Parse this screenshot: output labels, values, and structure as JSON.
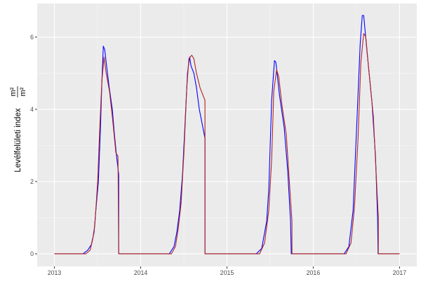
{
  "chart_data": {
    "type": "line",
    "title": "",
    "xlabel": "",
    "ylabel": {
      "text": "Levélfelületi index",
      "unit_numerator": "m²",
      "unit_denominator": "m²"
    },
    "x_ticks": [
      "2013",
      "2014",
      "2015",
      "2016",
      "2017"
    ],
    "y_ticks": [
      "0",
      "2",
      "4",
      "6"
    ],
    "xlim": [
      "2012-10-20",
      "2017-03-15"
    ],
    "ylim": [
      -0.35,
      6.93
    ],
    "grid": true,
    "legend": "none",
    "series": [
      {
        "color": "#0000FF",
        "points": [
          [
            "2013-01-01",
            0
          ],
          [
            "2013-05-02",
            0
          ],
          [
            "2013-05-22",
            0.1
          ],
          [
            "2013-06-06",
            0.25
          ],
          [
            "2013-06-18",
            0.6
          ],
          [
            "2013-06-24",
            1.1
          ],
          [
            "2013-07-06",
            2.0
          ],
          [
            "2013-07-15",
            3.5
          ],
          [
            "2013-07-21",
            4.8
          ],
          [
            "2013-07-27",
            5.75
          ],
          [
            "2013-08-02",
            5.65
          ],
          [
            "2013-08-08",
            5.3
          ],
          [
            "2013-08-19",
            4.7
          ],
          [
            "2013-09-03",
            4.0
          ],
          [
            "2013-09-12",
            3.3
          ],
          [
            "2013-09-21",
            2.7
          ],
          [
            "2013-09-30",
            2.2
          ],
          [
            "2013-09-30",
            0
          ],
          [
            "2014-05-02",
            0
          ],
          [
            "2014-05-22",
            0.2
          ],
          [
            "2014-06-03",
            0.6
          ],
          [
            "2014-06-15",
            1.2
          ],
          [
            "2014-06-27",
            2.2
          ],
          [
            "2014-07-09",
            3.8
          ],
          [
            "2014-07-18",
            5.0
          ],
          [
            "2014-07-27",
            5.45
          ],
          [
            "2014-08-02",
            5.2
          ],
          [
            "2014-08-14",
            5.0
          ],
          [
            "2014-08-25",
            4.6
          ],
          [
            "2014-09-06",
            4.0
          ],
          [
            "2014-09-18",
            3.6
          ],
          [
            "2014-09-30",
            3.2
          ],
          [
            "2014-09-30",
            0
          ],
          [
            "2015-05-05",
            0
          ],
          [
            "2015-05-28",
            0.15
          ],
          [
            "2015-06-18",
            0.9
          ],
          [
            "2015-06-27",
            1.8
          ],
          [
            "2015-07-09",
            4.25
          ],
          [
            "2015-07-21",
            5.35
          ],
          [
            "2015-07-27",
            5.3
          ],
          [
            "2015-08-11",
            4.4
          ],
          [
            "2015-08-31",
            3.5
          ],
          [
            "2015-09-15",
            2.3
          ],
          [
            "2015-09-27",
            0.9
          ],
          [
            "2015-09-30",
            0
          ],
          [
            "2016-05-11",
            0
          ],
          [
            "2016-05-31",
            0.2
          ],
          [
            "2016-06-18",
            1.2
          ],
          [
            "2016-07-03",
            3.5
          ],
          [
            "2016-07-18",
            5.8
          ],
          [
            "2016-07-27",
            6.6
          ],
          [
            "2016-08-02",
            6.6
          ],
          [
            "2016-08-16",
            5.6
          ],
          [
            "2016-09-06",
            4.2
          ],
          [
            "2016-09-21",
            2.7
          ],
          [
            "2016-09-30",
            1.0
          ],
          [
            "2016-10-02",
            0
          ],
          [
            "2017-01-01",
            0
          ]
        ]
      },
      {
        "color": "#B22222",
        "points": [
          [
            "2013-01-01",
            0
          ],
          [
            "2013-05-14",
            0
          ],
          [
            "2013-06-01",
            0.1
          ],
          [
            "2013-06-12",
            0.4
          ],
          [
            "2013-06-21",
            0.8
          ],
          [
            "2013-07-03",
            2.0
          ],
          [
            "2013-07-12",
            3.5
          ],
          [
            "2013-07-21",
            4.8
          ],
          [
            "2013-07-30",
            5.45
          ],
          [
            "2013-08-08",
            5.0
          ],
          [
            "2013-08-22",
            4.5
          ],
          [
            "2013-09-03",
            3.8
          ],
          [
            "2013-09-18",
            2.8
          ],
          [
            "2013-09-27",
            2.7
          ],
          [
            "2013-09-30",
            0
          ],
          [
            "2014-05-11",
            0
          ],
          [
            "2014-05-28",
            0.2
          ],
          [
            "2014-06-09",
            0.7
          ],
          [
            "2014-06-21",
            1.4
          ],
          [
            "2014-07-03",
            2.8
          ],
          [
            "2014-07-15",
            4.6
          ],
          [
            "2014-07-24",
            5.4
          ],
          [
            "2014-08-05",
            5.5
          ],
          [
            "2014-08-14",
            5.4
          ],
          [
            "2014-08-25",
            5.0
          ],
          [
            "2014-09-09",
            4.6
          ],
          [
            "2014-09-30",
            4.25
          ],
          [
            "2014-09-30",
            0
          ],
          [
            "2015-05-19",
            0
          ],
          [
            "2015-06-09",
            0.3
          ],
          [
            "2015-06-27",
            1.2
          ],
          [
            "2015-07-09",
            2.6
          ],
          [
            "2015-07-18",
            4.5
          ],
          [
            "2015-07-30",
            5.1
          ],
          [
            "2015-08-08",
            4.9
          ],
          [
            "2015-08-22",
            4.1
          ],
          [
            "2015-09-09",
            3.3
          ],
          [
            "2015-09-24",
            1.8
          ],
          [
            "2015-10-03",
            0.9
          ],
          [
            "2015-10-03",
            0
          ],
          [
            "2016-05-19",
            0
          ],
          [
            "2016-06-09",
            0.3
          ],
          [
            "2016-06-24",
            1.3
          ],
          [
            "2016-07-09",
            3.2
          ],
          [
            "2016-07-21",
            5.3
          ],
          [
            "2016-08-02",
            6.1
          ],
          [
            "2016-08-11",
            6.0
          ],
          [
            "2016-08-22",
            5.2
          ],
          [
            "2016-09-12",
            3.8
          ],
          [
            "2016-09-27",
            1.8
          ],
          [
            "2016-10-03",
            1.0
          ],
          [
            "2016-10-03",
            0
          ],
          [
            "2017-01-01",
            0
          ]
        ]
      }
    ]
  }
}
